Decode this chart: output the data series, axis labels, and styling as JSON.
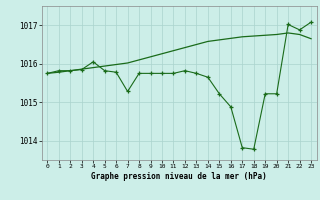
{
  "xlabel": "Graphe pression niveau de la mer (hPa)",
  "background_color": "#cceee8",
  "grid_color": "#aad4ce",
  "line_color": "#1a6b1a",
  "x": [
    0,
    1,
    2,
    3,
    4,
    5,
    6,
    7,
    8,
    9,
    10,
    11,
    12,
    13,
    14,
    15,
    16,
    17,
    18,
    19,
    20,
    21,
    22,
    23
  ],
  "y_measured": [
    1015.75,
    1015.82,
    1015.82,
    1015.85,
    1016.05,
    1015.82,
    1015.78,
    1015.28,
    1015.75,
    1015.75,
    1015.75,
    1015.75,
    1015.82,
    1015.75,
    1015.65,
    1015.22,
    1014.88,
    1013.82,
    1013.78,
    1015.22,
    1015.22,
    1017.02,
    1016.88,
    1017.08
  ],
  "y_smooth": [
    1015.75,
    1015.78,
    1015.82,
    1015.86,
    1015.9,
    1015.94,
    1015.98,
    1016.02,
    1016.1,
    1016.18,
    1016.26,
    1016.34,
    1016.42,
    1016.5,
    1016.58,
    1016.62,
    1016.66,
    1016.7,
    1016.72,
    1016.74,
    1016.76,
    1016.8,
    1016.76,
    1016.65
  ],
  "ylim": [
    1013.5,
    1017.5
  ],
  "yticks": [
    1014,
    1015,
    1016,
    1017
  ],
  "xlim": [
    -0.5,
    23.5
  ],
  "figsize": [
    3.2,
    2.0
  ],
  "dpi": 100
}
